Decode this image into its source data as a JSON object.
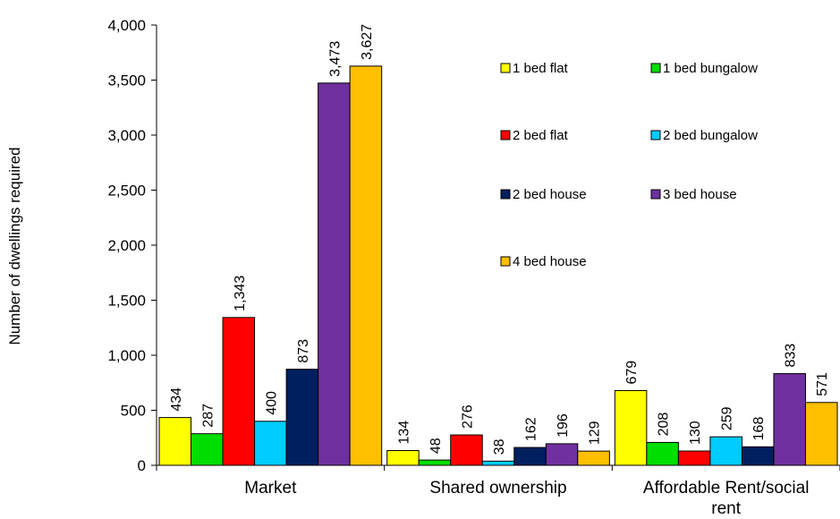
{
  "chart_data": {
    "type": "bar",
    "ylabel": "Number of dwellings required",
    "xlabel": "",
    "ylim": [
      0,
      4000
    ],
    "yticks": [
      0,
      500,
      1000,
      1500,
      2000,
      2500,
      3000,
      3500,
      4000
    ],
    "ytick_labels": [
      "0",
      "500",
      "1,000",
      "1,500",
      "2,000",
      "2,500",
      "3,000",
      "3,500",
      "4,000"
    ],
    "grid": false,
    "legend_position": "top-right",
    "categories": [
      {
        "line1": "Market",
        "line2": ""
      },
      {
        "line1": "Shared ownership",
        "line2": ""
      },
      {
        "line1": "Affordable Rent/social",
        "line2": "rent"
      }
    ],
    "series": [
      {
        "name": "1 bed flat",
        "color": "#FFFF00",
        "values": [
          434,
          134,
          679
        ],
        "labels": [
          "434",
          "134",
          "679"
        ]
      },
      {
        "name": "1 bed bungalow",
        "color": "#00DD00",
        "values": [
          287,
          48,
          208
        ],
        "labels": [
          "287",
          "48",
          "208"
        ]
      },
      {
        "name": "2 bed flat",
        "color": "#FF0000",
        "values": [
          1343,
          276,
          130
        ],
        "labels": [
          "1,343",
          "276",
          "130"
        ]
      },
      {
        "name": "2 bed bungalow",
        "color": "#00CCFF",
        "values": [
          400,
          38,
          259
        ],
        "labels": [
          "400",
          "38",
          "259"
        ]
      },
      {
        "name": "2 bed house",
        "color": "#001F5F",
        "values": [
          873,
          162,
          168
        ],
        "labels": [
          "873",
          "162",
          "168"
        ]
      },
      {
        "name": "3 bed house",
        "color": "#7030A0",
        "values": [
          3473,
          196,
          833
        ],
        "labels": [
          "3,473",
          "196",
          "833"
        ]
      },
      {
        "name": "4 bed house",
        "color": "#FFC000",
        "values": [
          3627,
          129,
          571
        ],
        "labels": [
          "3,627",
          "129",
          "571"
        ]
      }
    ]
  }
}
